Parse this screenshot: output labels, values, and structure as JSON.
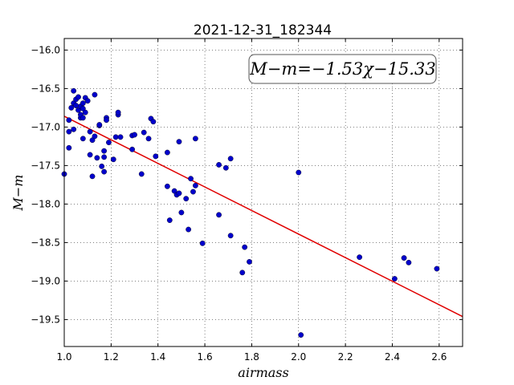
{
  "chart_data": {
    "type": "scatter",
    "title": "2021-12-31_182344",
    "xlabel": "airmass",
    "ylabel": "M−m",
    "xlim": [
      1.0,
      2.7
    ],
    "ylim": [
      -15.85,
      -19.85
    ],
    "y_inverted": true,
    "grid": true,
    "x_ticks": [
      "1.0",
      "1.2",
      "1.4",
      "1.6",
      "1.8",
      "2.0",
      "2.2",
      "2.4",
      "2.6"
    ],
    "y_ticks": [
      "−16.0",
      "−16.5",
      "−17.0",
      "−17.5",
      "−18.0",
      "−18.5",
      "−19.0",
      "−19.5"
    ],
    "annotation": "M−m=−1.53χ−15.33",
    "fit": {
      "slope": -1.53,
      "intercept": -15.33,
      "color": "#e00000"
    },
    "point_color": "#0000cc",
    "points": [
      [
        1.0,
        -17.61
      ],
      [
        1.02,
        -17.27
      ],
      [
        1.02,
        -16.91
      ],
      [
        1.02,
        -17.06
      ],
      [
        1.03,
        -16.75
      ],
      [
        1.04,
        -16.69
      ],
      [
        1.04,
        -16.53
      ],
      [
        1.04,
        -17.03
      ],
      [
        1.05,
        -16.64
      ],
      [
        1.05,
        -16.72
      ],
      [
        1.06,
        -16.61
      ],
      [
        1.06,
        -16.78
      ],
      [
        1.07,
        -16.88
      ],
      [
        1.07,
        -16.84
      ],
      [
        1.07,
        -16.73
      ],
      [
        1.08,
        -16.69
      ],
      [
        1.08,
        -16.76
      ],
      [
        1.08,
        -16.88
      ],
      [
        1.08,
        -17.15
      ],
      [
        1.09,
        -16.62
      ],
      [
        1.09,
        -16.81
      ],
      [
        1.1,
        -16.66
      ],
      [
        1.11,
        -17.36
      ],
      [
        1.11,
        -17.06
      ],
      [
        1.12,
        -17.17
      ],
      [
        1.12,
        -17.64
      ],
      [
        1.13,
        -17.12
      ],
      [
        1.13,
        -16.58
      ],
      [
        1.14,
        -17.4
      ],
      [
        1.15,
        -16.98
      ],
      [
        1.15,
        -16.97
      ],
      [
        1.16,
        -17.51
      ],
      [
        1.17,
        -17.31
      ],
      [
        1.17,
        -17.39
      ],
      [
        1.17,
        -17.58
      ],
      [
        1.18,
        -16.88
      ],
      [
        1.18,
        -16.91
      ],
      [
        1.19,
        -17.2
      ],
      [
        1.21,
        -17.42
      ],
      [
        1.22,
        -17.13
      ],
      [
        1.23,
        -16.84
      ],
      [
        1.23,
        -16.81
      ],
      [
        1.24,
        -17.13
      ],
      [
        1.29,
        -17.11
      ],
      [
        1.29,
        -17.29
      ],
      [
        1.3,
        -17.1
      ],
      [
        1.33,
        -17.61
      ],
      [
        1.34,
        -17.07
      ],
      [
        1.36,
        -17.15
      ],
      [
        1.37,
        -16.89
      ],
      [
        1.38,
        -16.93
      ],
      [
        1.39,
        -17.38
      ],
      [
        1.44,
        -17.77
      ],
      [
        1.44,
        -17.33
      ],
      [
        1.45,
        -18.21
      ],
      [
        1.47,
        -17.83
      ],
      [
        1.48,
        -17.88
      ],
      [
        1.49,
        -17.86
      ],
      [
        1.49,
        -17.19
      ],
      [
        1.5,
        -18.11
      ],
      [
        1.52,
        -17.93
      ],
      [
        1.53,
        -18.33
      ],
      [
        1.54,
        -17.67
      ],
      [
        1.55,
        -17.84
      ],
      [
        1.56,
        -17.76
      ],
      [
        1.56,
        -17.15
      ],
      [
        1.59,
        -18.51
      ],
      [
        1.66,
        -17.49
      ],
      [
        1.66,
        -18.14
      ],
      [
        1.69,
        -17.53
      ],
      [
        1.71,
        -17.41
      ],
      [
        1.71,
        -18.41
      ],
      [
        1.76,
        -18.89
      ],
      [
        1.77,
        -18.56
      ],
      [
        1.79,
        -18.75
      ],
      [
        2.0,
        -17.59
      ],
      [
        2.01,
        -19.7
      ],
      [
        2.26,
        -18.69
      ],
      [
        2.41,
        -18.97
      ],
      [
        2.45,
        -18.7
      ],
      [
        2.47,
        -18.76
      ],
      [
        2.59,
        -18.84
      ]
    ]
  }
}
